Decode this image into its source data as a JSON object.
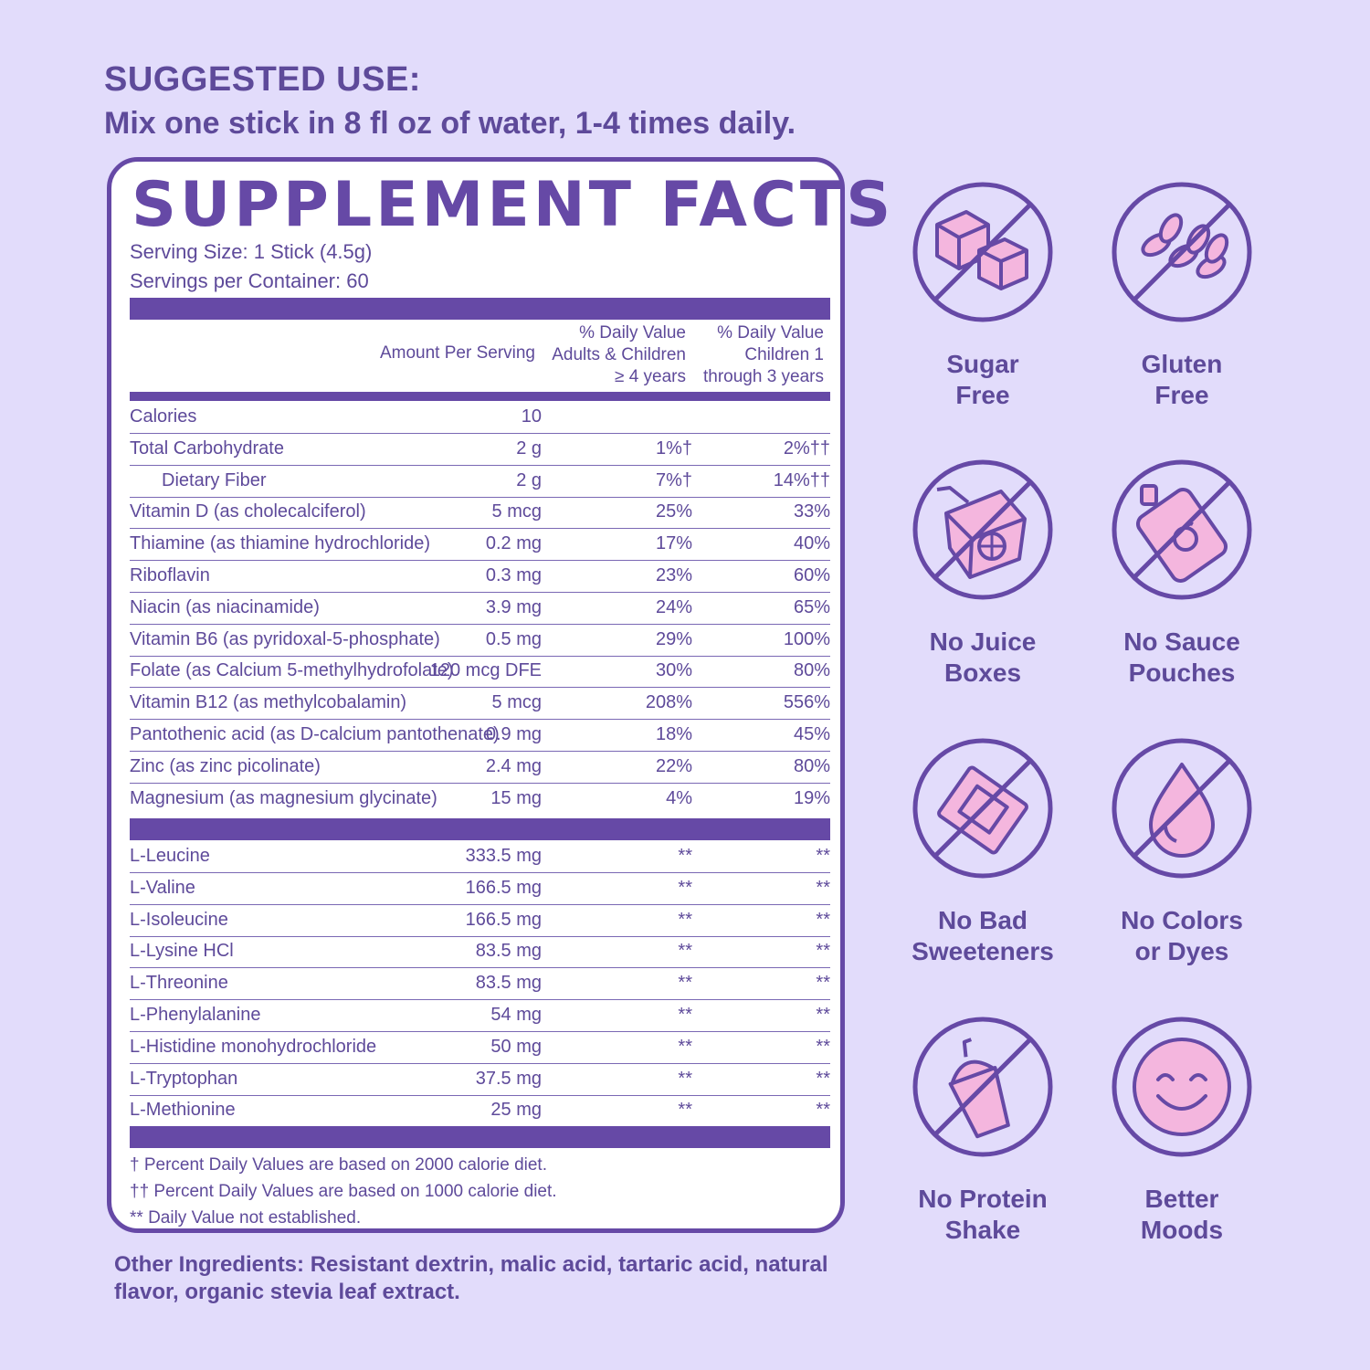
{
  "suggested_use": {
    "heading": "SUGGESTED USE:",
    "text": "Mix one stick in 8 fl oz of water, 1-4 times daily."
  },
  "facts": {
    "title": "SUPPLEMENT FACTS",
    "serving_size": "Serving Size: 1 Stick (4.5g)",
    "servings_per_container": "Servings per Container: 60",
    "columns": {
      "amount": "Amount Per Serving",
      "dv_adults": [
        "% Daily Value",
        "Adults & Children",
        "≥ 4 years"
      ],
      "dv_children": [
        "% Daily Value",
        "Children 1",
        "through 3 years"
      ]
    },
    "nutrients": [
      {
        "name": "Calories",
        "amount": "10",
        "dv_adults": "",
        "dv_children": ""
      },
      {
        "name": "Total Carbohydrate",
        "amount": "2 g",
        "dv_adults": "1%†",
        "dv_children": "2%††"
      },
      {
        "name": "Dietary Fiber",
        "amount": "2 g",
        "dv_adults": "7%†",
        "dv_children": "14%††"
      },
      {
        "name": "Vitamin D (as cholecalciferol)",
        "amount": "5 mcg",
        "dv_adults": "25%",
        "dv_children": "33%"
      },
      {
        "name": "Thiamine (as thiamine hydrochloride)",
        "amount": "0.2 mg",
        "dv_adults": "17%",
        "dv_children": "40%"
      },
      {
        "name": "Riboflavin",
        "amount": "0.3 mg",
        "dv_adults": "23%",
        "dv_children": "60%"
      },
      {
        "name": "Niacin (as niacinamide)",
        "amount": "3.9 mg",
        "dv_adults": "24%",
        "dv_children": "65%"
      },
      {
        "name": "Vitamin B6 (as pyridoxal-5-phosphate)",
        "amount": "0.5 mg",
        "dv_adults": "29%",
        "dv_children": "100%"
      },
      {
        "name": "Folate (as Calcium 5-methylhydrofolate)",
        "amount": "120 mcg DFE",
        "dv_adults": "30%",
        "dv_children": "80%"
      },
      {
        "name": "Vitamin B12 (as methylcobalamin)",
        "amount": "5 mcg",
        "dv_adults": "208%",
        "dv_children": "556%"
      },
      {
        "name": "Pantothenic acid (as D-calcium pantothenate)",
        "amount": "0.9 mg",
        "dv_adults": "18%",
        "dv_children": "45%"
      },
      {
        "name": "Zinc (as zinc picolinate)",
        "amount": "2.4 mg",
        "dv_adults": "22%",
        "dv_children": "80%"
      },
      {
        "name": "Magnesium (as magnesium glycinate)",
        "amount": "15 mg",
        "dv_adults": "4%",
        "dv_children": "19%"
      }
    ],
    "amino_acids": [
      {
        "name": "L-Leucine",
        "amount": "333.5 mg",
        "dv_adults": "**",
        "dv_children": "**"
      },
      {
        "name": "L-Valine",
        "amount": "166.5 mg",
        "dv_adults": "**",
        "dv_children": "**"
      },
      {
        "name": "L-Isoleucine",
        "amount": "166.5 mg",
        "dv_adults": "**",
        "dv_children": "**"
      },
      {
        "name": "L-Lysine HCl",
        "amount": "83.5 mg",
        "dv_adults": "**",
        "dv_children": "**"
      },
      {
        "name": "L-Threonine",
        "amount": "83.5 mg",
        "dv_adults": "**",
        "dv_children": "**"
      },
      {
        "name": "L-Phenylalanine",
        "amount": "54 mg",
        "dv_adults": "**",
        "dv_children": "**"
      },
      {
        "name": "L-Histidine monohydrochloride",
        "amount": "50 mg",
        "dv_adults": "**",
        "dv_children": "**"
      },
      {
        "name": "L-Tryptophan",
        "amount": "37.5 mg",
        "dv_adults": "**",
        "dv_children": "**"
      },
      {
        "name": "L-Methionine",
        "amount": "25 mg",
        "dv_adults": "**",
        "dv_children": "**"
      }
    ],
    "footnotes": [
      "† Percent Daily Values are based on 2000 calorie diet.",
      "†† Percent Daily Values are based on 1000 calorie diet.",
      "** Daily Value not established."
    ]
  },
  "other_ingredients": "Other Ingredients: Resistant dextrin, malic acid, tartaric acid, natural flavor, organic stevia leaf extract.",
  "badges": [
    {
      "icon": "sugar-cubes-icon",
      "label": [
        "Sugar",
        "Free"
      ]
    },
    {
      "icon": "wheat-icon",
      "label": [
        "Gluten",
        "Free"
      ]
    },
    {
      "icon": "juice-box-icon",
      "label": [
        "No Juice",
        "Boxes"
      ]
    },
    {
      "icon": "sauce-pouch-icon",
      "label": [
        "No Sauce",
        "Pouches"
      ]
    },
    {
      "icon": "sweetener-packet-icon",
      "label": [
        "No Bad",
        "Sweeteners"
      ]
    },
    {
      "icon": "dye-drop-icon",
      "label": [
        "No Colors",
        "or Dyes"
      ]
    },
    {
      "icon": "protein-shaker-icon",
      "label": [
        "No Protein",
        "Shake"
      ]
    },
    {
      "icon": "smiley-face-icon",
      "label": [
        "Better",
        "Moods"
      ]
    }
  ],
  "colors": {
    "background": "#e2dcfb",
    "accent_purple": "#6649a6",
    "text_purple": "#5e4a9a",
    "icon_pink": "#f4b6de"
  }
}
